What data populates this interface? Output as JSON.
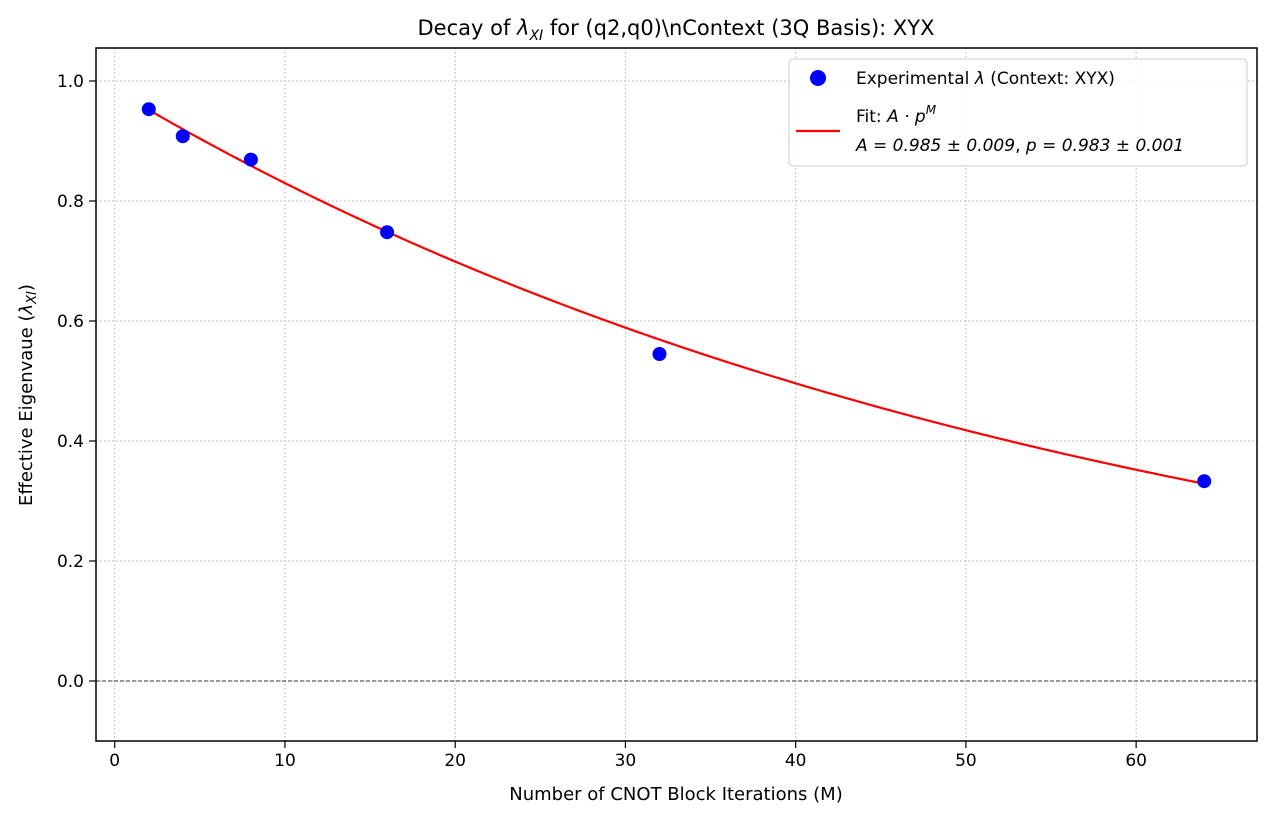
{
  "chart_data": {
    "type": "scatter",
    "title": {
      "prefix": "Decay of ",
      "symbol": "λ",
      "subscript": "XI",
      "suffix": " for (q2,q0)\\nContext (3Q Basis): XYX"
    },
    "xlabel": "Number of CNOT Block Iterations (M)",
    "ylabel": {
      "prefix": "Effective Eigenvaue (",
      "symbol": "λ",
      "subscript": "XI",
      "suffix": ")"
    },
    "xlim": [
      -1.1,
      67.1
    ],
    "ylim": [
      -0.1,
      1.055
    ],
    "x_ticks": [
      0,
      10,
      20,
      30,
      40,
      50,
      60
    ],
    "x_tick_labels": [
      "0",
      "10",
      "20",
      "30",
      "40",
      "50",
      "60"
    ],
    "y_ticks": [
      0.0,
      0.2,
      0.4,
      0.6,
      0.8,
      1.0
    ],
    "y_tick_labels": [
      "0.0",
      "0.2",
      "0.4",
      "0.6",
      "0.8",
      "1.0"
    ],
    "grid": true,
    "reference_line_y": 0.0,
    "legend_position": "upper right",
    "series": [
      {
        "name": "Experimental λ (Context: XYX)",
        "kind": "scatter",
        "color": "#0000ff",
        "x": [
          2,
          4,
          8,
          16,
          32,
          64
        ],
        "y": [
          0.953,
          0.908,
          0.869,
          0.748,
          0.545,
          0.333
        ]
      },
      {
        "kind": "line",
        "color": "#ff0000",
        "model": "A*p^M",
        "A": 0.985,
        "p": 0.983,
        "x_range": [
          2,
          64
        ]
      }
    ],
    "legend": {
      "scatter_label": {
        "prefix": "Experimental ",
        "symbol": "λ",
        "suffix": " (Context: XYX)"
      },
      "fit_label_line1": {
        "prefix": "Fit: ",
        "formula": "A · p",
        "superscript": "M"
      },
      "fit_label_line2": {
        "a_part": "A = 0.985 ± 0.009",
        "sep": ", ",
        "p_part": "p = 0.983 ± 0.001"
      }
    }
  }
}
